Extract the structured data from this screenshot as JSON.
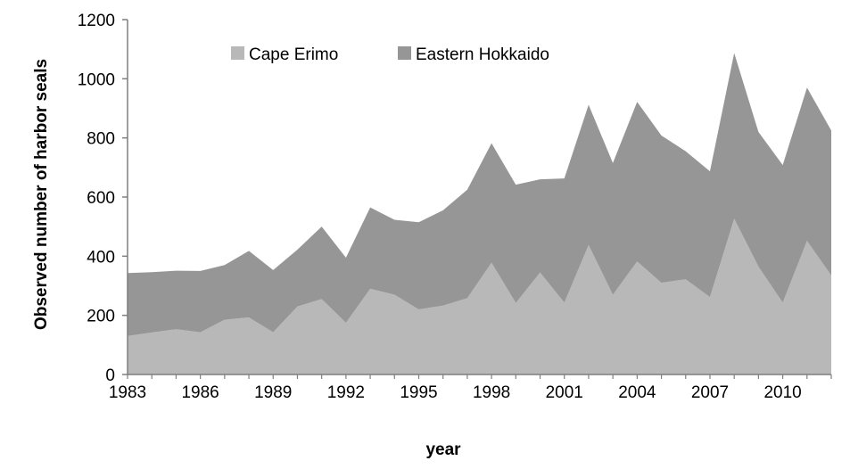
{
  "chart_data": {
    "type": "area",
    "stacked": true,
    "title": "",
    "xlabel": "year",
    "ylabel": "Observed number of harbor seals",
    "ylim": [
      0,
      1200
    ],
    "yticks": [
      "0",
      "200",
      "400",
      "600",
      "800",
      "1000",
      "1200"
    ],
    "xticks": [
      "1983",
      "1986",
      "1989",
      "1992",
      "1995",
      "1998",
      "2001",
      "2004",
      "2007",
      "2010"
    ],
    "grid": false,
    "legend": "top",
    "x": [
      1983,
      1984,
      1985,
      1986,
      1987,
      1988,
      1989,
      1990,
      1991,
      1992,
      1993,
      1994,
      1995,
      1996,
      1997,
      1998,
      1999,
      2000,
      2001,
      2002,
      2003,
      2004,
      2005,
      2006,
      2007,
      2008,
      2009,
      2010,
      2011,
      2012
    ],
    "series": [
      {
        "name": "Cape Erimo",
        "color": "#b8b8b8",
        "values": [
          130,
          142,
          153,
          143,
          185,
          193,
          143,
          230,
          255,
          175,
          290,
          270,
          220,
          233,
          258,
          378,
          242,
          345,
          243,
          438,
          270,
          382,
          310,
          322,
          262,
          527,
          365,
          243,
          452,
          335
        ]
      },
      {
        "name": "Eastern Hokkaido",
        "color": "#969696",
        "values": [
          213,
          204,
          198,
          207,
          185,
          225,
          210,
          192,
          245,
          220,
          275,
          253,
          295,
          322,
          367,
          404,
          400,
          315,
          420,
          474,
          445,
          540,
          498,
          433,
          425,
          560,
          455,
          465,
          518,
          490
        ]
      }
    ]
  }
}
